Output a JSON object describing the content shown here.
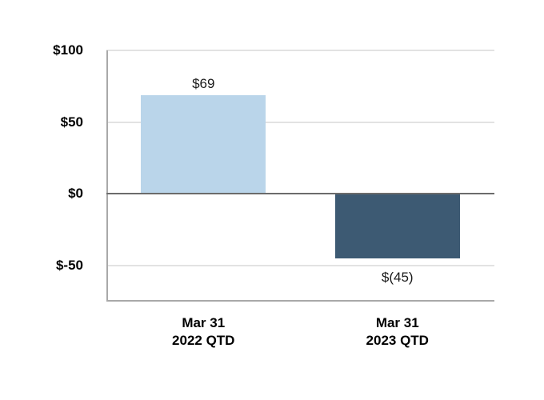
{
  "chart_data": {
    "type": "bar",
    "title": "",
    "categories": [
      {
        "lines": [
          "Mar 31",
          "2022 QTD"
        ]
      },
      {
        "lines": [
          "Mar 31",
          "2023 QTD"
        ]
      }
    ],
    "values": [
      69,
      -45
    ],
    "bar_labels": [
      "$69",
      "$(45)"
    ],
    "bar_colors": [
      "#BAD5EA",
      "#3D5A73"
    ],
    "y_axis": {
      "min": -75,
      "max": 100,
      "ticks": [
        {
          "value": 100,
          "label": "$100"
        },
        {
          "value": 50,
          "label": "$50"
        },
        {
          "value": 0,
          "label": "$0"
        },
        {
          "value": -50,
          "label": "$-50"
        }
      ]
    },
    "xlabel": "",
    "ylabel": "",
    "grid": true,
    "legend": false,
    "colors": {
      "background": "#FFFFFF",
      "gridline": "#E2E2E2",
      "zero_line": "#6B6B6B",
      "axis_frame": "#A9A9A9",
      "text": "#000000"
    }
  }
}
